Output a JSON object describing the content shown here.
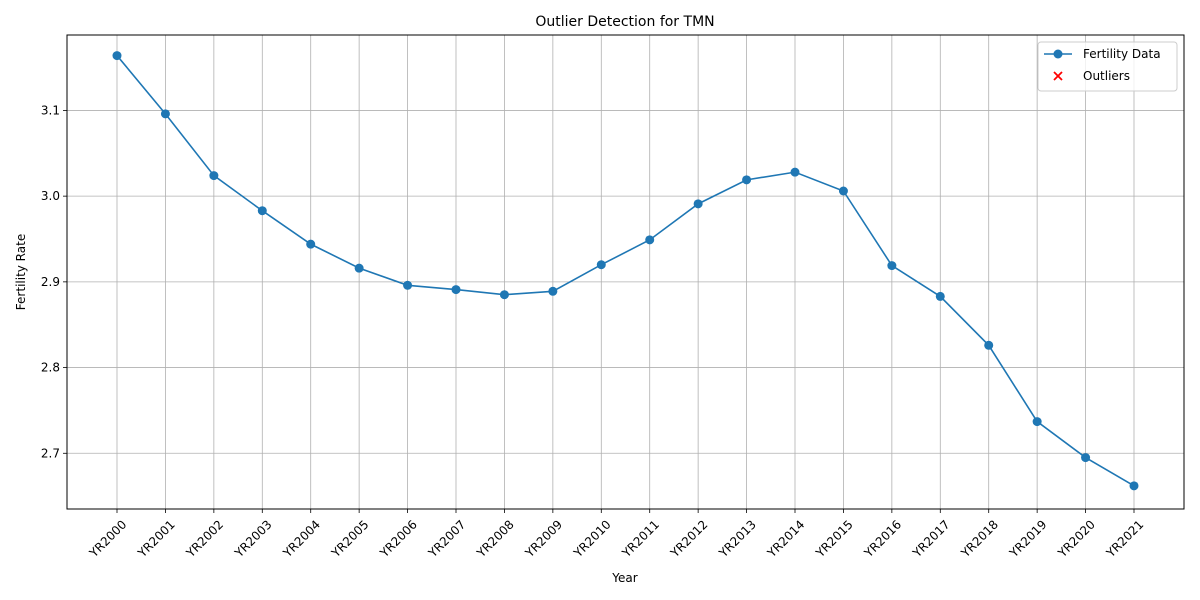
{
  "chart_data": {
    "type": "line",
    "title": "Outlier Detection for TMN",
    "xlabel": "Year",
    "ylabel": "Fertility Rate",
    "ylim": [
      2.635,
      3.188
    ],
    "yticks": [
      2.7,
      2.8,
      2.9,
      3.0,
      3.1
    ],
    "yticklabels": [
      "2.7",
      "2.8",
      "2.9",
      "3.0",
      "3.1"
    ],
    "grid": true,
    "legend_position": "top-right",
    "categories": [
      "YR2000",
      "YR2001",
      "YR2002",
      "YR2003",
      "YR2004",
      "YR2005",
      "YR2006",
      "YR2007",
      "YR2008",
      "YR2009",
      "YR2010",
      "YR2011",
      "YR2012",
      "YR2013",
      "YR2014",
      "YR2015",
      "YR2016",
      "YR2017",
      "YR2018",
      "YR2019",
      "YR2020",
      "YR2021"
    ],
    "series": [
      {
        "name": "Fertility Data",
        "color": "#1f77b4",
        "marker": "circle",
        "values": [
          3.164,
          3.096,
          3.024,
          2.983,
          2.944,
          2.916,
          2.896,
          2.891,
          2.885,
          2.889,
          2.92,
          2.949,
          2.991,
          3.019,
          3.028,
          3.006,
          2.919,
          2.883,
          2.826,
          2.737,
          2.695,
          2.662
        ]
      }
    ],
    "outliers": {
      "name": "Outliers",
      "color": "#ff0000",
      "marker": "x",
      "points": []
    }
  }
}
